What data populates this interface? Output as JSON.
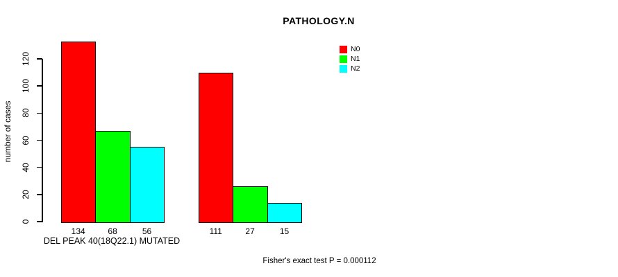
{
  "chart_data": {
    "type": "bar",
    "title": "PATHOLOGY.N",
    "ylabel": "number of cases",
    "xlabel": "DEL PEAK 40(18Q22.1) MUTATED",
    "annotation": "Fisher's exact test P = 0.000112",
    "series": [
      {
        "name": "N0",
        "color": "#ff0000"
      },
      {
        "name": "N1",
        "color": "#00ff00"
      },
      {
        "name": "N2",
        "color": "#00ffff"
      }
    ],
    "groups": [
      {
        "values": [
          134,
          68,
          56
        ]
      },
      {
        "values": [
          111,
          27,
          15
        ]
      }
    ],
    "bar_value_labels": [
      [
        134,
        68,
        56
      ],
      [
        111,
        27,
        15
      ]
    ],
    "yticks": [
      0,
      20,
      40,
      60,
      80,
      100,
      120
    ],
    "ylim": [
      0,
      136
    ],
    "grid": false,
    "legend_position": "top-right",
    "background": "#ffffff",
    "text_color": "#000000",
    "bar_border_color": "#000000"
  }
}
